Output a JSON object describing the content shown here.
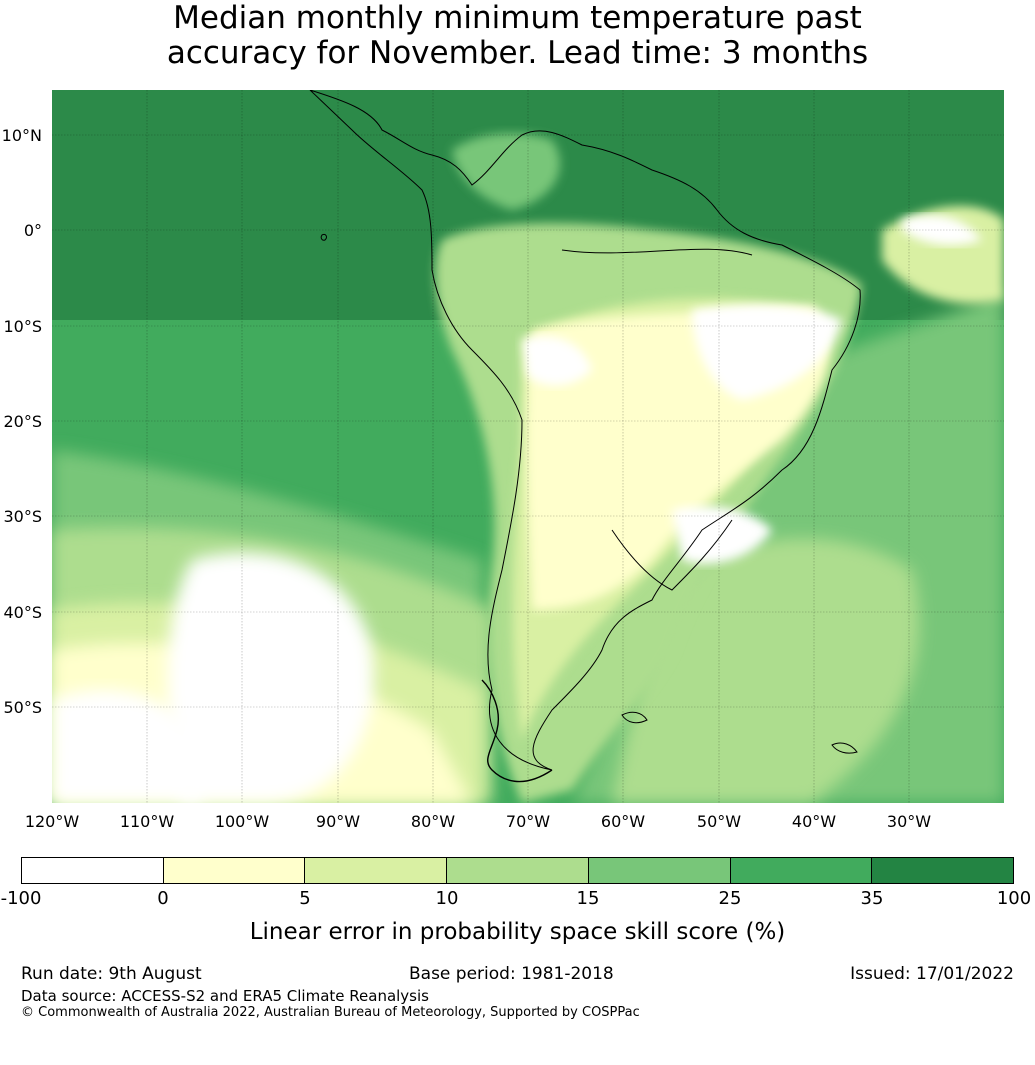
{
  "title": {
    "line1": "Median monthly minimum temperature past",
    "line2": "accuracy for November. Lead time: 3 months"
  },
  "map": {
    "lat_labels": [
      "10°N",
      "0°",
      "10°S",
      "20°S",
      "30°S",
      "40°S",
      "50°S"
    ],
    "lon_labels": [
      "120°W",
      "110°W",
      "100°W",
      "90°W",
      "80°W",
      "70°W",
      "60°W",
      "50°W",
      "40°W",
      "30°W"
    ],
    "colors": {
      "below_0": "#ffffff",
      "c0_5": "#ffffcc",
      "c5_10": "#d9f0a3",
      "c10_15": "#addd8e",
      "c15_25": "#78c679",
      "c25_35": "#41ab5d",
      "c35_100": "#238443",
      "coastline": "#000000"
    }
  },
  "colorbar": {
    "ticks": [
      "-100",
      "0",
      "5",
      "10",
      "15",
      "25",
      "35",
      "100"
    ],
    "colors": [
      "#ffffff",
      "#ffffcc",
      "#d9f0a3",
      "#addd8e",
      "#78c679",
      "#41ab5d",
      "#238443"
    ],
    "label": "Linear error in probability space skill score (%)"
  },
  "footer": {
    "run_date": "Run date: 9th August",
    "base_period": "Base period: 1981-2018",
    "issued": "Issued: 17/01/2022",
    "data_source": "Data source: ACCESS-S2 and ERA5 Climate Reanalysis",
    "copyright": "© Commonwealth of Australia 2022, Australian Bureau of Meteorology, Supported by COSPPac"
  }
}
